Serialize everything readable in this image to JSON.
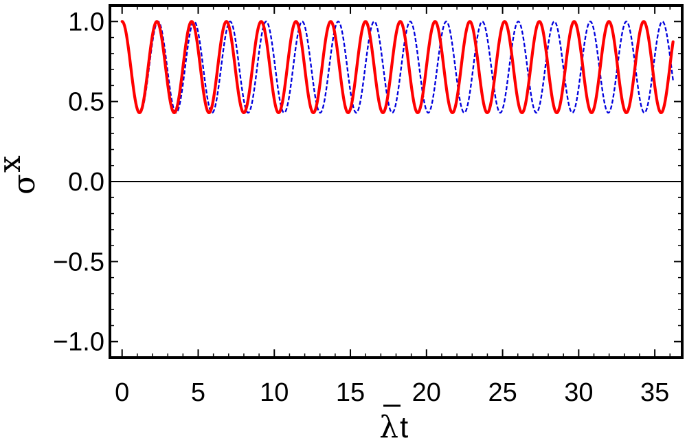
{
  "chart_data": {
    "type": "line",
    "xlabel": {
      "symbol": "λ",
      "suffix": "t"
    },
    "ylabel": {
      "symbol": "σ",
      "superscript": "x"
    },
    "xlim": [
      -0.8,
      36.8
    ],
    "ylim": [
      -1.1,
      1.1
    ],
    "x_ticks": [
      0,
      5,
      10,
      15,
      20,
      25,
      30,
      35
    ],
    "x_tick_labels": [
      "0",
      "5",
      "10",
      "15",
      "20",
      "25",
      "30",
      "35"
    ],
    "y_ticks": [
      -1.0,
      -0.5,
      0.0,
      0.5,
      1.0
    ],
    "y_tick_labels": [
      "−1.0",
      "−0.5",
      "0.0",
      "0.5",
      "1.0"
    ],
    "grid": false,
    "legend": "none",
    "reference_line": {
      "y": 0.0,
      "color": "#000000"
    },
    "series": [
      {
        "color": "#ff0000",
        "style": "solid",
        "curve": {
          "function": "0.715 + 0.285*cos(omega*t)",
          "omega": 2.75,
          "t_range": [
            0,
            36.2
          ]
        },
        "x": [
          0,
          1.14,
          2.28,
          3.43,
          4.57,
          5.71,
          6.85,
          8.0,
          9.14,
          10.28,
          11.42,
          12.57,
          13.71,
          14.85,
          15.99,
          17.14,
          18.28,
          19.42,
          20.56,
          21.71,
          22.85,
          23.99,
          25.13,
          26.28,
          27.42,
          28.56,
          29.7,
          30.85,
          31.99,
          33.13,
          34.27,
          35.42,
          36.2
        ],
        "y": [
          1.0,
          0.43,
          1.0,
          0.43,
          1.0,
          0.43,
          1.0,
          0.43,
          1.0,
          0.43,
          1.0,
          0.43,
          1.0,
          0.43,
          1.0,
          0.43,
          1.0,
          0.43,
          1.0,
          0.43,
          1.0,
          0.43,
          1.0,
          0.43,
          1.0,
          0.43,
          1.0,
          0.43,
          1.0,
          0.43,
          1.0,
          0.43,
          0.66
        ]
      },
      {
        "color": "#0000dd",
        "style": "dashed",
        "curve": {
          "function": "0.715 + 0.285*cos(omega*t)",
          "omega": 2.655,
          "t_range": [
            0,
            36.2
          ]
        },
        "x": [
          0,
          1.18,
          2.37,
          3.55,
          4.73,
          5.92,
          7.1,
          8.28,
          9.47,
          10.65,
          11.83,
          13.02,
          14.2,
          15.38,
          16.57,
          17.75,
          18.93,
          20.12,
          21.3,
          22.48,
          23.67,
          24.85,
          26.03,
          27.22,
          28.4,
          29.58,
          30.77,
          31.95,
          33.13,
          34.32,
          35.5,
          36.2
        ],
        "y": [
          1.0,
          0.43,
          1.0,
          0.43,
          1.0,
          0.43,
          1.0,
          0.43,
          1.0,
          0.43,
          1.0,
          0.43,
          1.0,
          0.43,
          1.0,
          0.43,
          1.0,
          0.43,
          1.0,
          0.43,
          1.0,
          0.43,
          1.0,
          0.43,
          1.0,
          0.43,
          1.0,
          0.43,
          1.0,
          0.43,
          1.0,
          0.45
        ]
      }
    ]
  }
}
